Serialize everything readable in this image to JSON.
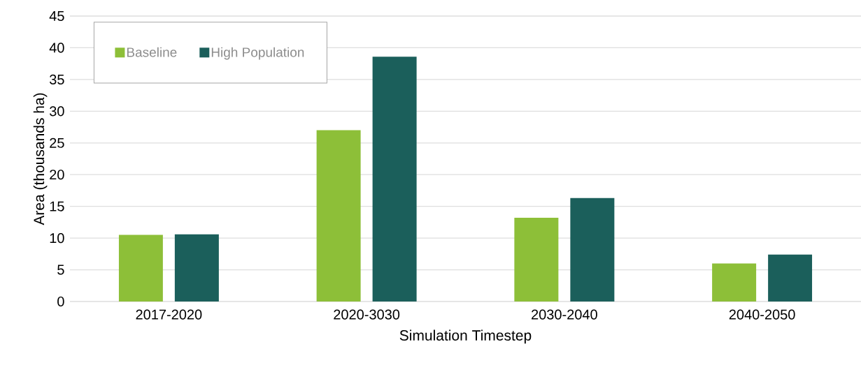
{
  "chart_data": {
    "type": "bar",
    "xlabel": "Simulation Timestep",
    "ylabel": "Area (thousands ha)",
    "categories": [
      "2017-2020",
      "2020-3030",
      "2030-2040",
      "2040-2050"
    ],
    "series": [
      {
        "name": "Baseline",
        "color": "#8dbf38",
        "values": [
          10.5,
          27.0,
          13.2,
          6.0
        ]
      },
      {
        "name": "High Population",
        "color": "#1b5f5b",
        "values": [
          10.6,
          38.6,
          16.3,
          7.4
        ]
      }
    ],
    "ylim": [
      0,
      45
    ],
    "yticks": [
      0,
      5,
      10,
      15,
      20,
      25,
      30,
      35,
      40,
      45
    ],
    "grid": "y",
    "legend": "top left"
  }
}
